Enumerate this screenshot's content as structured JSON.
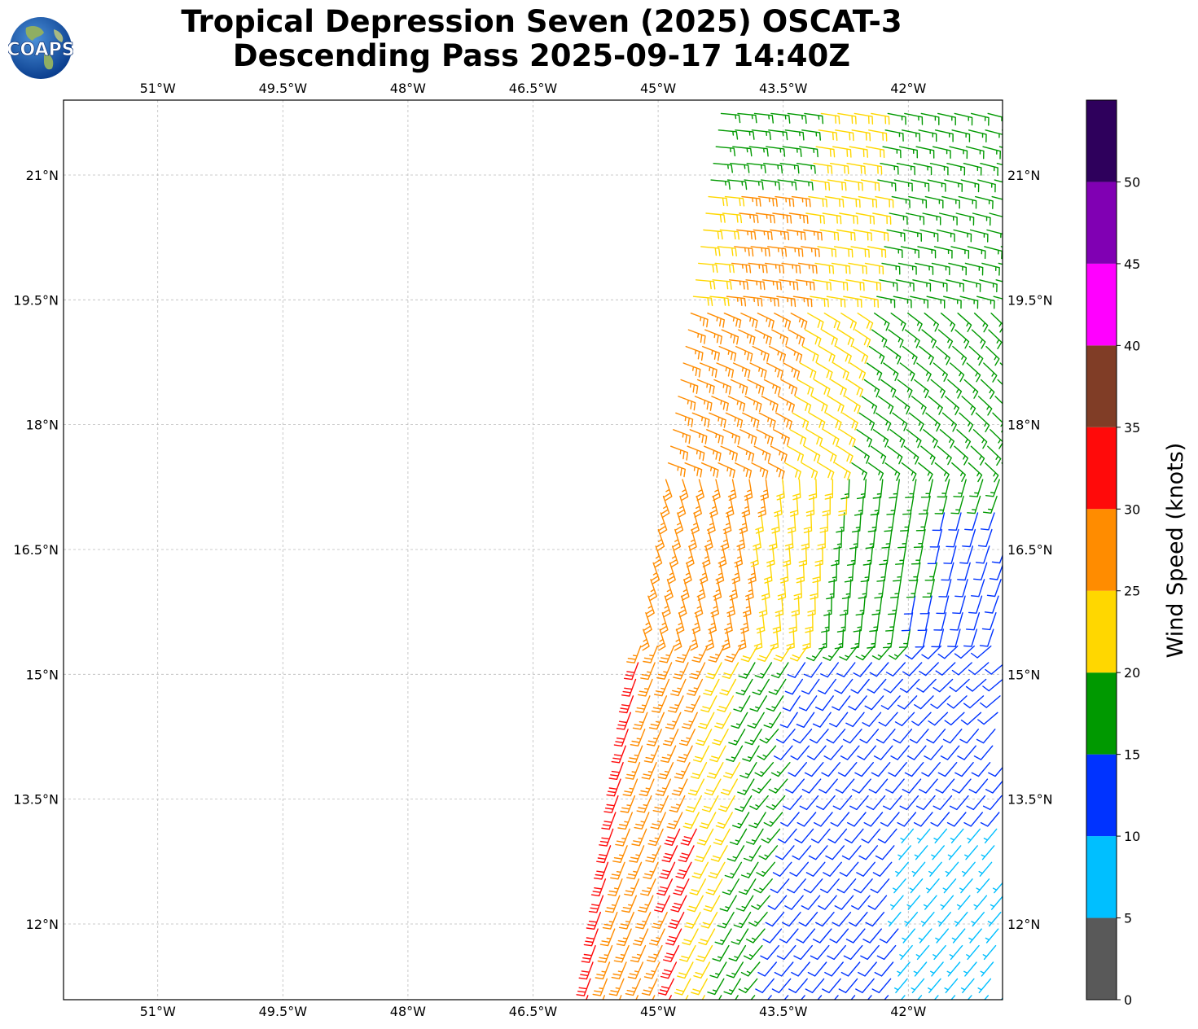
{
  "title": {
    "line1": "Tropical Depression Seven (2025) OSCAT-3",
    "line2": "Descending Pass 2025-09-17 14:40Z"
  },
  "logo": {
    "text": "COAPS",
    "icon": "globe-icon"
  },
  "map": {
    "lon_range": [
      -52.13,
      -40.87
    ],
    "lat_range": [
      11.09,
      21.9
    ],
    "lon_ticks": [
      "51°W",
      "49.5°W",
      "48°W",
      "46.5°W",
      "45°W",
      "43.5°W",
      "42°W"
    ],
    "lon_tick_values": [
      -51,
      -49.5,
      -48,
      -46.5,
      -45,
      -43.5,
      -42
    ],
    "lat_ticks": [
      "12°N",
      "13.5°N",
      "15°N",
      "16.5°N",
      "18°N",
      "19.5°N",
      "21°N"
    ],
    "lat_tick_values": [
      12,
      13.5,
      15,
      16.5,
      18,
      19.5,
      21
    ],
    "grid": true,
    "swath": {
      "east_edge_lon": -40.87,
      "west_edge_at_south": {
        "lat": 11.09,
        "lon": -45.93
      },
      "west_edge_at_north": {
        "lat": 21.9,
        "lon": -44.3
      }
    },
    "wind_field": {
      "description_kind": "wind-barbs",
      "zones": [
        {
          "area": "west edge south of 15N",
          "speed_kt": 32,
          "color": "#ff0000"
        },
        {
          "area": "west band",
          "speed_kt": 27,
          "color": "#ff8c00"
        },
        {
          "area": "central band",
          "speed_kt": 22,
          "color": "#ffd700"
        },
        {
          "area": "east band north",
          "speed_kt": 17,
          "color": "#009900"
        },
        {
          "area": "southeast quadrant",
          "speed_kt": 12,
          "color": "#0033ff"
        },
        {
          "area": "far southeast",
          "speed_kt": 7,
          "color": "#00bfff"
        }
      ]
    }
  },
  "colorbar": {
    "label": "Wind Speed (knots)",
    "ticks": [
      "0",
      "5",
      "10",
      "15",
      "20",
      "25",
      "30",
      "35",
      "40",
      "45",
      "50"
    ],
    "bins": [
      {
        "from": 0,
        "to": 5,
        "color": "#595959"
      },
      {
        "from": 5,
        "to": 10,
        "color": "#00bfff"
      },
      {
        "from": 10,
        "to": 15,
        "color": "#0033ff"
      },
      {
        "from": 15,
        "to": 20,
        "color": "#009900"
      },
      {
        "from": 20,
        "to": 25,
        "color": "#ffd700"
      },
      {
        "from": 25,
        "to": 30,
        "color": "#ff8c00"
      },
      {
        "from": 30,
        "to": 35,
        "color": "#ff0a0a"
      },
      {
        "from": 35,
        "to": 40,
        "color": "#803d26"
      },
      {
        "from": 40,
        "to": 45,
        "color": "#ff00ff"
      },
      {
        "from": 45,
        "to": 50,
        "color": "#8000b3"
      },
      {
        "from": 50,
        "to": 55,
        "color": "#2e005c"
      }
    ]
  }
}
